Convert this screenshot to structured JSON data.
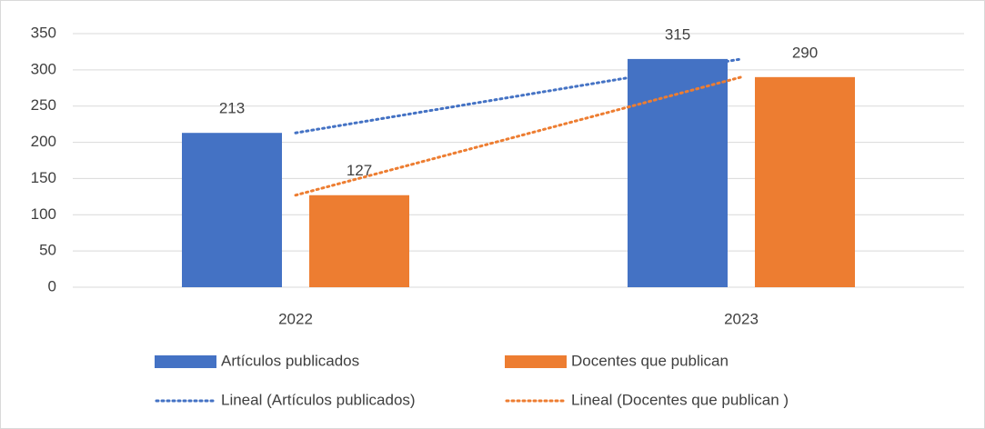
{
  "chart_data": {
    "type": "bar",
    "categories": [
      "2022",
      "2023"
    ],
    "series": [
      {
        "name": "Artículos publicados",
        "color": "#4472c4",
        "values": [
          213,
          315
        ],
        "trendline": "Lineal (Artículos publicados)"
      },
      {
        "name": "Docentes que publican",
        "color": "#ed7d31",
        "values": [
          127,
          290
        ],
        "trendline": "Lineal (Docentes que publican )"
      }
    ],
    "ylim": [
      0,
      350
    ],
    "yticks": [
      0,
      50,
      100,
      150,
      200,
      250,
      300,
      350
    ],
    "grid": true,
    "legend": "bottom"
  }
}
